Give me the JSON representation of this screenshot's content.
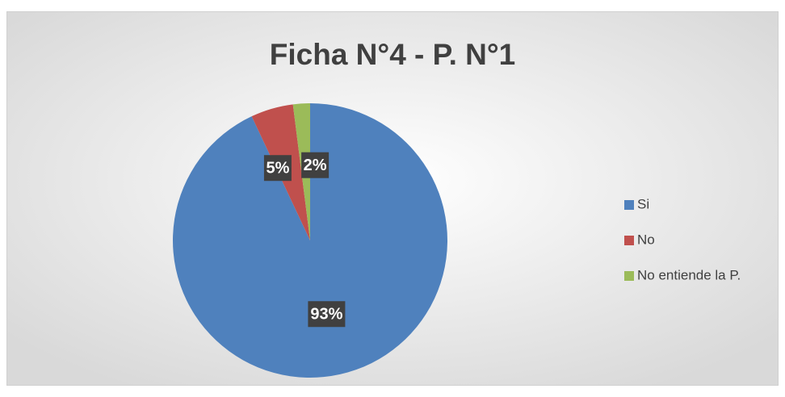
{
  "chart_data": {
    "type": "pie",
    "title": "Ficha N°4 - P. N°1",
    "categories": [
      "Si",
      "No",
      "No entiende la P."
    ],
    "values": [
      93,
      5,
      2
    ],
    "value_labels": [
      "93%",
      "5%",
      "2%"
    ],
    "colors": [
      "#4f81bd",
      "#c0504d",
      "#9bbb59"
    ],
    "legend": "right"
  }
}
